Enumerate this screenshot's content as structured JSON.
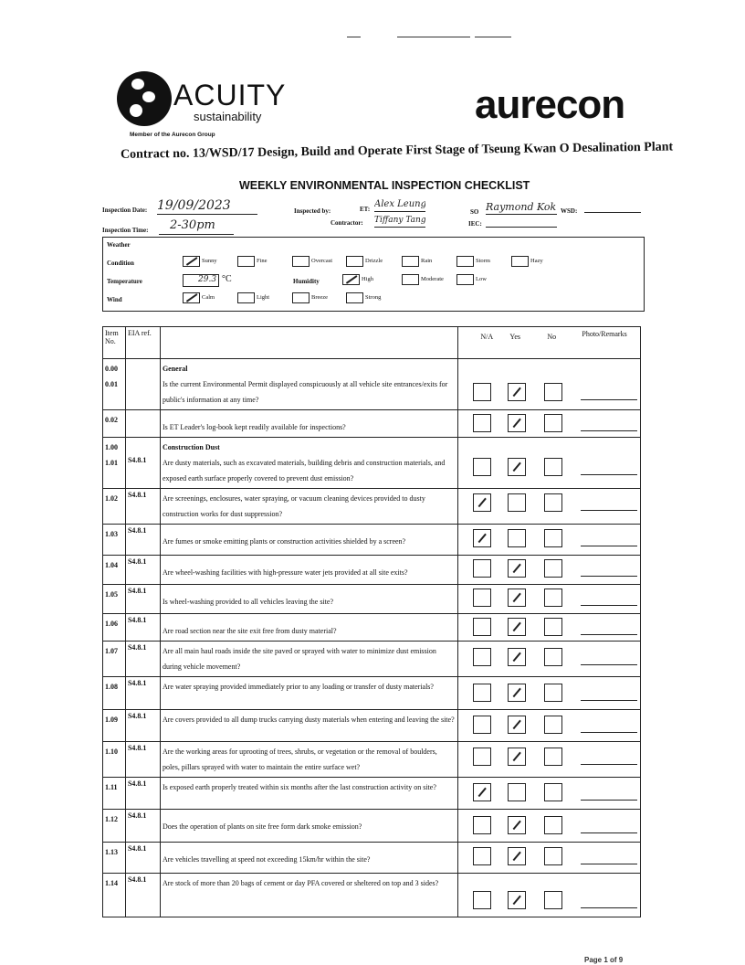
{
  "logos": {
    "acuity": "ACUITY",
    "acuity_sub": "sustainability",
    "acuity_member": "Member of the Aurecon Group",
    "aurecon": "aurecon"
  },
  "contract": "Contract no.  13/WSD/17 Design, Build and Operate First Stage of Tseung Kwan O Desalination Plant",
  "title": "WEEKLY ENVIRONMENTAL INSPECTION CHECKLIST",
  "form": {
    "date_label": "Inspection Date:",
    "date_value": "19/09/2023",
    "time_label": "Inspection Time:",
    "time_value": "2-30pm",
    "inspected_by_label": "Inspected by:",
    "et_label": "ET:",
    "et_value": "Alex Leung",
    "contractor_label": "Contractor:",
    "contractor_value": "Tiffany Tang",
    "so_label": "SO",
    "so_value": "Raymond Kok",
    "iec_label": "IEC:",
    "iec_value": "",
    "wsd_label": "WSD:",
    "wsd_value": ""
  },
  "weather": {
    "label": "Weather",
    "condition_label": "Condition",
    "conditions": [
      {
        "label": "Sunny",
        "checked": true
      },
      {
        "label": "Fine",
        "checked": false
      },
      {
        "label": "Overcast",
        "checked": false
      },
      {
        "label": "Drizzle",
        "checked": false
      },
      {
        "label": "Rain",
        "checked": false
      },
      {
        "label": "Storm",
        "checked": false
      },
      {
        "label": "Hazy",
        "checked": false
      }
    ],
    "temperature_label": "Temperature",
    "temperature_value": "29.3",
    "temperature_unit": "°C",
    "humidity_label": "Humidity",
    "humidity": [
      {
        "label": "High",
        "checked": true
      },
      {
        "label": "Moderate",
        "checked": false
      },
      {
        "label": "Low",
        "checked": false
      }
    ],
    "wind_label": "Wind",
    "wind": [
      {
        "label": "Calm",
        "checked": true
      },
      {
        "label": "Light",
        "checked": false
      },
      {
        "label": "Breeze",
        "checked": false
      },
      {
        "label": "Strong",
        "checked": false
      }
    ]
  },
  "table": {
    "headers": {
      "item": "Item No.",
      "eia": "EIA ref.",
      "na": "N/A",
      "yes": "Yes",
      "no": "No",
      "remarks": "Photo/Remarks"
    },
    "rows": [
      {
        "item": "0.00\n0.01",
        "eia": "",
        "section": "General",
        "question": "Is the current Environmental Permit displayed conspicuously at all vehicle site entrances/exits for public's information at any time?",
        "answer": "yes"
      },
      {
        "item": "0.02",
        "eia": "",
        "section": "",
        "question": "Is ET Leader's log-book kept readily available for inspections?",
        "answer": "yes"
      },
      {
        "item": "1.00\n1.01",
        "eia": "S4.8.1",
        "section": "Construction Dust",
        "question": "Are dusty materials, such as excavated materials, building debris and construction materials, and exposed earth surface properly covered to prevent dust emission?",
        "answer": "yes"
      },
      {
        "item": "1.02",
        "eia": "S4.8.1",
        "section": "",
        "question": "Are screenings, enclosures, water spraying, or vacuum cleaning devices provided to dusty construction works for dust suppression?",
        "answer": "na"
      },
      {
        "item": "1.03",
        "eia": "S4.8.1",
        "section": "",
        "question": "Are fumes or smoke emitting plants or construction activities shielded by a screen?",
        "answer": "na"
      },
      {
        "item": "1.04",
        "eia": "S4.8.1",
        "section": "",
        "question": "Are wheel-washing facilities with high-pressure water jets provided at all site exits?",
        "answer": "yes"
      },
      {
        "item": "1.05",
        "eia": "S4.8.1",
        "section": "",
        "question": "Is wheel-washing provided to all vehicles leaving the site?",
        "answer": "yes"
      },
      {
        "item": "1.06",
        "eia": "S4.8.1",
        "section": "",
        "question": "Are road section near the site exit free from dusty material?",
        "answer": "yes"
      },
      {
        "item": "1.07",
        "eia": "S4.8.1",
        "section": "",
        "question": "Are all main haul roads inside the site paved or sprayed with water to minimize dust emission during vehicle movement?",
        "answer": "yes"
      },
      {
        "item": "1.08",
        "eia": "S4.8.1",
        "section": "",
        "question": "Are water spraying provided immediately prior to any loading or transfer of dusty materials?",
        "answer": "yes"
      },
      {
        "item": "1.09",
        "eia": "S4.8.1",
        "section": "",
        "question": "Are covers provided to all dump trucks carrying dusty materials when entering and leaving the site?",
        "answer": "yes"
      },
      {
        "item": "1.10",
        "eia": "S4.8.1",
        "section": "",
        "question": "Are the working areas for uprooting of trees, shrubs, or vegetation or the removal of boulders, poles, pillars sprayed with water to maintain the entire surface wet?",
        "answer": "yes"
      },
      {
        "item": "1.11",
        "eia": "S4.8.1",
        "section": "",
        "question": "Is exposed earth properly treated within six months after the last construction activity on site?",
        "answer": "na"
      },
      {
        "item": "1.12",
        "eia": "S4.8.1",
        "section": "",
        "question": "Does the operation of plants on site free form dark smoke emission?",
        "answer": "yes"
      },
      {
        "item": "1.13",
        "eia": "S4.8.1",
        "section": "",
        "question": "Are vehicles travelling at speed not exceeding 15km/hr within the site?",
        "answer": "yes"
      },
      {
        "item": "1.14",
        "eia": "S4.8.1",
        "section": "",
        "question": "Are stock of more than 20 bags of cement or day PFA covered or sheltered on top and 3 sides?",
        "answer": "yes"
      }
    ]
  },
  "footer": "Page 1 of 9"
}
